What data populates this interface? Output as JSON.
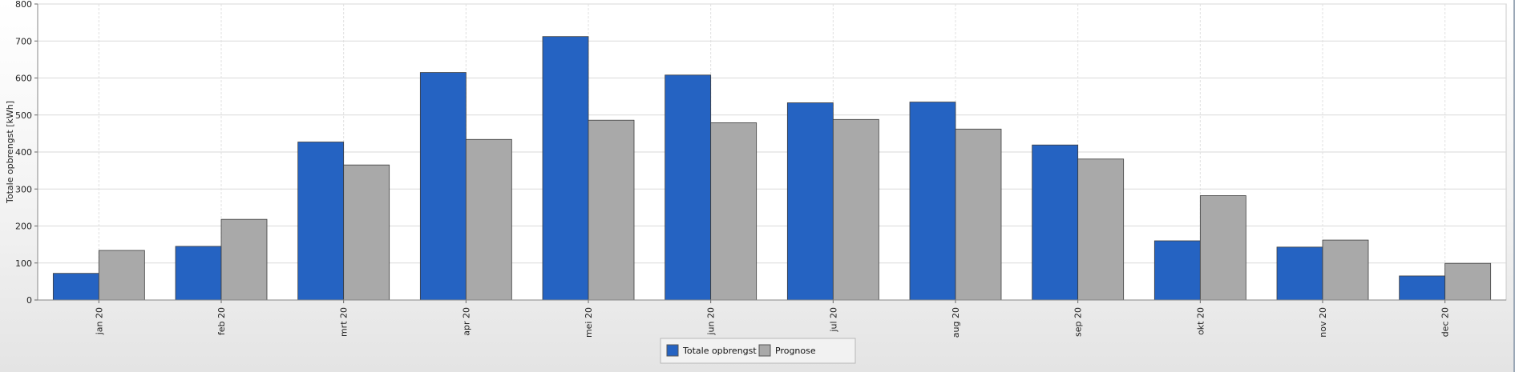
{
  "chart_data": {
    "type": "bar",
    "categories": [
      "jan 20",
      "feb 20",
      "mrt 20",
      "apr 20",
      "mei 20",
      "jun 20",
      "jul 20",
      "aug 20",
      "sep 20",
      "okt 20",
      "nov 20",
      "dec 20"
    ],
    "series": [
      {
        "name": "Totale opbrengst",
        "color": "#2563c2",
        "values": [
          72,
          145,
          427,
          615,
          712,
          608,
          533,
          535,
          419,
          160,
          143,
          65
        ]
      },
      {
        "name": "Prognose",
        "color": "#a9a9a9",
        "values": [
          134,
          218,
          365,
          434,
          486,
          479,
          488,
          462,
          381,
          282,
          162,
          99
        ]
      }
    ],
    "xlabel": "",
    "ylabel": "Totale opbrengst [kWh]",
    "ylim": [
      0,
      800
    ],
    "yticks": [
      0,
      100,
      200,
      300,
      400,
      500,
      600,
      700,
      800
    ],
    "grid": true,
    "legend": "bottom-center"
  }
}
